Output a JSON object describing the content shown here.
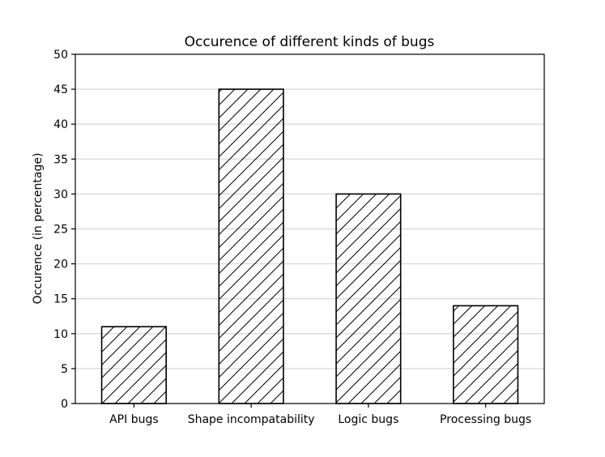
{
  "chart_data": {
    "type": "bar",
    "title": "Occurence of different kinds of bugs",
    "xlabel": "",
    "ylabel": "Occurence (in percentage)",
    "categories": [
      "API bugs",
      "Shape incompatability",
      "Logic bugs",
      "Processing bugs"
    ],
    "values": [
      11,
      45,
      30,
      14
    ],
    "ylim": [
      0,
      50
    ],
    "yticks": [
      0,
      5,
      10,
      15,
      20,
      25,
      30,
      35,
      40,
      45,
      50
    ],
    "grid": "horizontal",
    "bar_fill": "#ffffff",
    "bar_edge": "#000000",
    "bar_hatch": "diagonal",
    "grid_color": "#d9d9d9"
  }
}
